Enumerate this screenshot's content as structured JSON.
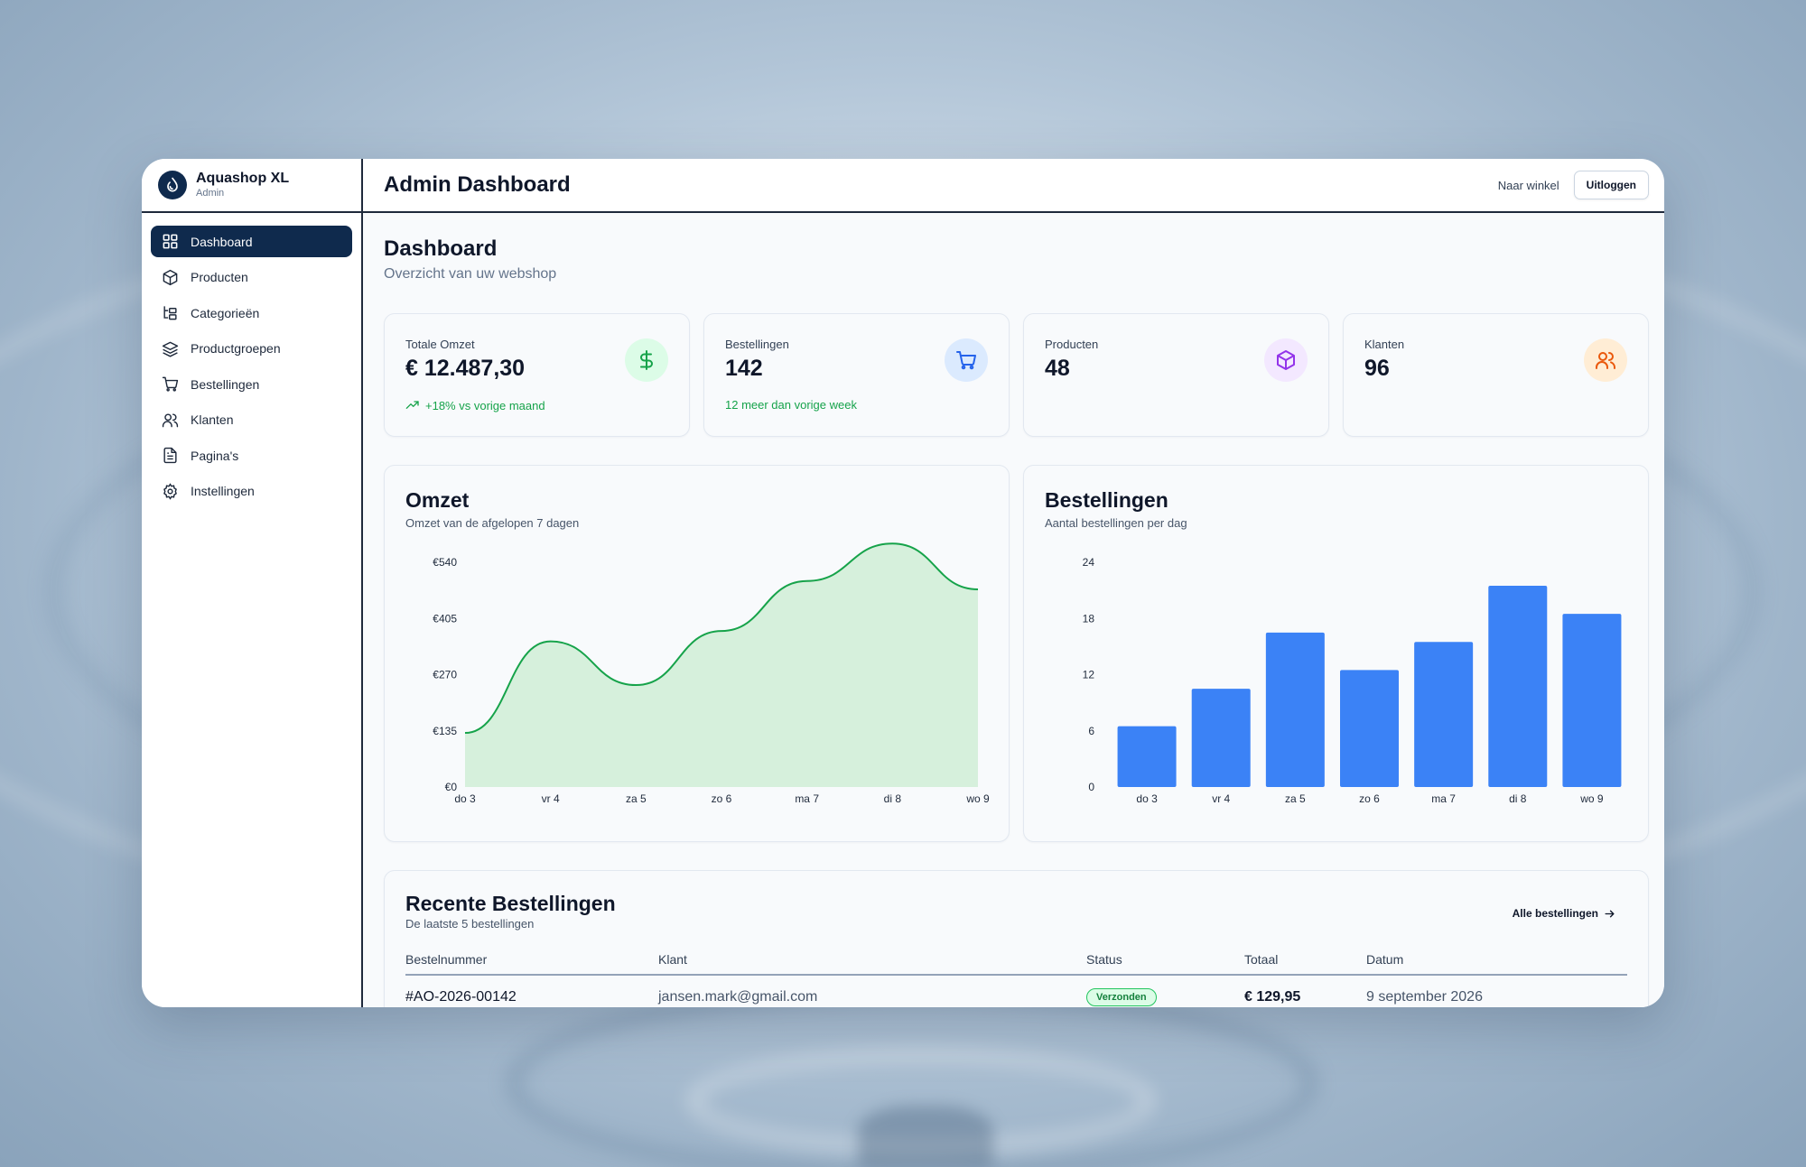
{
  "app": {
    "name": "Aquashop XL",
    "role": "Admin"
  },
  "sidebar": {
    "items": [
      {
        "label": "Dashboard",
        "icon": "grid-icon",
        "active": true
      },
      {
        "label": "Producten",
        "icon": "box-icon"
      },
      {
        "label": "Categorieën",
        "icon": "tree-icon"
      },
      {
        "label": "Productgroepen",
        "icon": "layers-icon"
      },
      {
        "label": "Bestellingen",
        "icon": "cart-icon"
      },
      {
        "label": "Klanten",
        "icon": "users-icon"
      },
      {
        "label": "Pagina's",
        "icon": "file-icon"
      },
      {
        "label": "Instellingen",
        "icon": "gear-icon"
      }
    ]
  },
  "header": {
    "title": "Admin Dashboard",
    "store_link": "Naar winkel",
    "logout": "Uitloggen"
  },
  "page": {
    "title": "Dashboard",
    "subtitle": "Overzicht van uw webshop"
  },
  "stats": [
    {
      "label": "Totale Omzet",
      "value": "€ 12.487,30",
      "foot": "+18% vs vorige maand",
      "icon": "dollar-icon",
      "color": "#16a34a",
      "bg": "#dcfce7"
    },
    {
      "label": "Bestellingen",
      "value": "142",
      "foot": "12 meer dan vorige week",
      "icon": "cart-icon",
      "color": "#2563eb",
      "bg": "#dbeafe"
    },
    {
      "label": "Producten",
      "value": "48",
      "foot": "",
      "icon": "box-icon",
      "color": "#9333ea",
      "bg": "#f3e8ff"
    },
    {
      "label": "Klanten",
      "value": "96",
      "foot": "",
      "icon": "users-icon",
      "color": "#ea580c",
      "bg": "#ffedd5"
    }
  ],
  "revenue_chart": {
    "title": "Omzet",
    "subtitle": "Omzet van de afgelopen 7 dagen"
  },
  "orders_chart": {
    "title": "Bestellingen",
    "subtitle": "Aantal bestellingen per dag"
  },
  "chart_data": [
    {
      "type": "area",
      "title": "Omzet",
      "subtitle": "Omzet van de afgelopen 7 dagen",
      "categories": [
        "do 3",
        "vr 4",
        "za 5",
        "zo 6",
        "ma 7",
        "di 8",
        "wo 9"
      ],
      "values": [
        130,
        350,
        245,
        375,
        495,
        585,
        475
      ],
      "y_ticks": [
        "€0",
        "€135",
        "€270",
        "€405",
        "€540"
      ],
      "ylim": [
        0,
        540
      ],
      "grid": false,
      "color": "#16a34a",
      "fill": "#d6f0dc"
    },
    {
      "type": "bar",
      "title": "Bestellingen",
      "subtitle": "Aantal bestellingen per dag",
      "categories": [
        "do 3",
        "vr 4",
        "za 5",
        "zo 6",
        "ma 7",
        "di 8",
        "wo 9"
      ],
      "values": [
        6.5,
        10.5,
        16.5,
        12.5,
        15.5,
        21.5,
        18.5
      ],
      "y_ticks": [
        "0",
        "6",
        "12",
        "18",
        "24"
      ],
      "ylim": [
        0,
        24
      ],
      "grid": false,
      "color": "#3b82f6"
    }
  ],
  "orders": {
    "title": "Recente Bestellingen",
    "subtitle": "De laatste 5 bestellingen",
    "view_all": "Alle bestellingen",
    "columns": [
      "Bestelnummer",
      "Klant",
      "Status",
      "Totaal",
      "Datum"
    ],
    "rows": [
      {
        "number": "#AO-2026-00142",
        "customer": "jansen.mark@gmail.com",
        "status": "Verzonden",
        "total": "€ 129,95",
        "date": "9 september 2026"
      }
    ]
  }
}
